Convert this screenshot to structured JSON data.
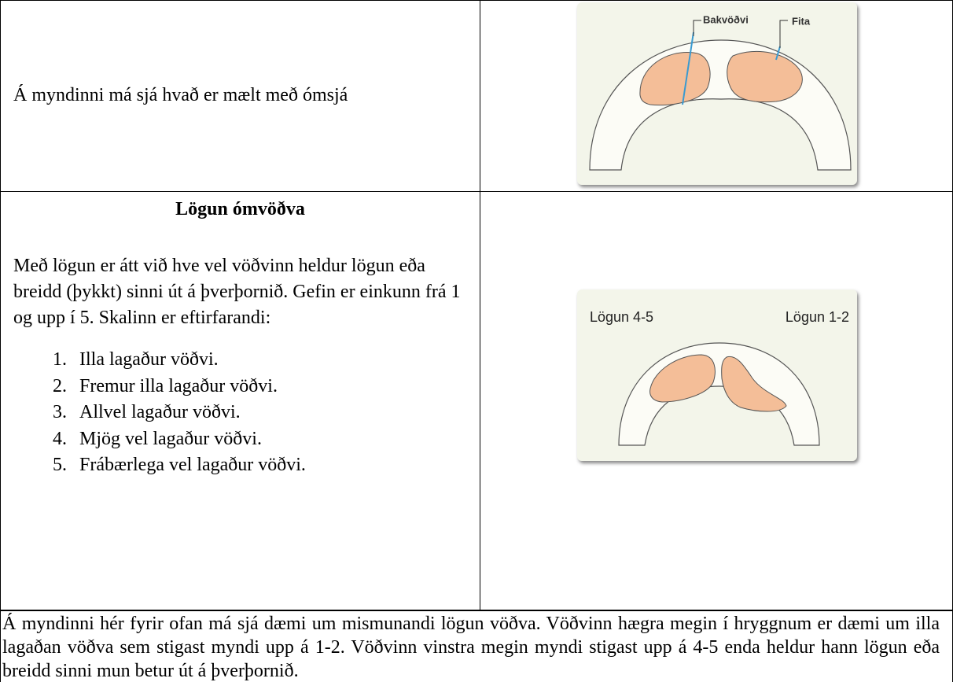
{
  "table": {
    "rows": [
      {
        "text": "Á myndinni má sjá hvað er mælt með ómsjá",
        "figure": {
          "labels": [
            "Bakvöðvi",
            "Fita"
          ]
        }
      },
      {
        "heading": "Lögun ómvöðva",
        "text": "Með lögun er átt við hve vel vöðvinn heldur lögun eða breidd (þykkt) sinni út á þverþornið. Gefin er einkunn frá 1 og upp í 5. Skalinn er eftirfarandi:",
        "list": [
          "Illa lagaður vöðvi.",
          "Fremur illa lagaður vöðvi.",
          "Allvel lagaður vöðvi.",
          "Mjög vel lagaður vöðvi.",
          "Frábærlega vel lagaður vöðvi."
        ],
        "figure": {
          "labels": [
            "Lögun 4-5",
            "Lögun 1-2"
          ]
        }
      },
      {
        "text": "Á myndinni hér fyrir ofan má sjá dæmi um mismunandi lögun vöðva. Vöðvinn hægra megin í hryggnum er dæmi um illa lagaðan vöðva sem stigast myndi upp á 1-2. Vöðvinn vinstra megin myndi stigast upp á 4-5 enda heldur hann lögun eða breidd sinni mun betur út á þverþornið."
      }
    ]
  }
}
